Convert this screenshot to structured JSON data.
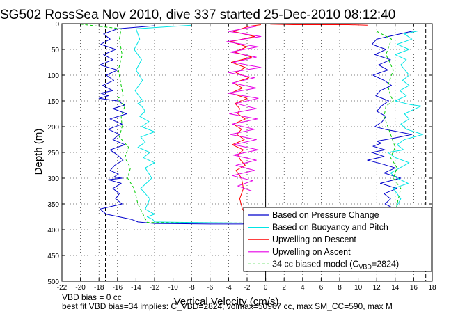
{
  "chart_data": {
    "type": "line",
    "title": "SG502 RossSea Nov 2010, dive 337 started 25-Dec-2010 08:12:40",
    "xlabel": "Vertical Velocity (cm/s)",
    "ylabel": "Depth (m)",
    "xlim": [
      -22,
      18
    ],
    "ylim": [
      0,
      500
    ],
    "y_reversed": true,
    "grid": true,
    "legend_position": "lower-right",
    "xticks": [
      "-22",
      "-20",
      "-18",
      "-16",
      "-14",
      "-12",
      "-10",
      "-8",
      "-6",
      "-4",
      "-2",
      "0",
      "2",
      "4",
      "6",
      "8",
      "10",
      "12",
      "14",
      "16",
      "18"
    ],
    "yticks": [
      "0",
      "50",
      "100",
      "150",
      "200",
      "250",
      "300",
      "350",
      "400",
      "450",
      "500"
    ],
    "vertical_lines": [
      {
        "x": -17.3,
        "style": "dashed",
        "color": "#000000"
      },
      {
        "x": 0,
        "style": "solid",
        "color": "#000000"
      },
      {
        "x": 17.3,
        "style": "dashed",
        "color": "#000000"
      }
    ],
    "series": [
      {
        "name": "Based on Pressure Change",
        "color": "#0000cc",
        "segments": [
          {
            "x": [
              -12.0,
              -16.0,
              -17.5,
              -16.8,
              -17.8,
              -16.2,
              -17.5,
              -16.5,
              -17.9,
              -16.0,
              -17.2,
              -16.4,
              -17.6,
              -16.5,
              -17.8,
              -17.0,
              -18.0,
              -16.0,
              -15.2,
              -16.5,
              -15.0,
              -16.8,
              -15.5,
              -17.0,
              -15.8,
              -16.5,
              -15.2,
              -16.8,
              -16.0,
              -15.4,
              -16.3,
              -16.8,
              -15.9,
              -16.4,
              -15.5,
              -17.0,
              -15.6,
              -16.5,
              -15.8,
              -16.2,
              -15.5,
              -17.9,
              -17.2,
              -14.5,
              -13.8,
              -12.0,
              -6.0,
              -2.5,
              -2.0
            ],
            "y": [
              4,
              10,
              20,
              30,
              40,
              50,
              60,
              70,
              80,
              90,
              100,
              110,
              120,
              130,
              135,
              140,
              145,
              150,
              158,
              165,
              175,
              185,
              195,
              205,
              215,
              225,
              235,
              245,
              255,
              265,
              275,
              285,
              292,
              298,
              300,
              303,
              310,
              320,
              330,
              340,
              350,
              360,
              370,
              380,
              385,
              388,
              389,
              389,
              388
            ]
          },
          {
            "x": [
              16.0,
              12.0,
              11.5,
              13.0,
              11.8,
              13.5,
              12.2,
              13.2,
              11.6,
              12.8,
              13.6,
              12.4,
              11.9,
              13.3,
              12.5,
              12.0,
              13.0,
              12.6,
              11.8,
              12.9,
              15.8,
              14.5,
              13.0,
              12.0,
              12.5,
              11.6,
              12.9,
              11.5,
              12.8,
              11.0,
              12.5,
              14.0,
              12.8,
              14.6,
              12.4,
              14.2,
              12.8,
              13.5,
              12.9,
              14.0,
              13.2,
              12.7
            ],
            "y": [
              14,
              30,
              40,
              50,
              60,
              70,
              80,
              90,
              100,
              110,
              120,
              130,
              140,
              150,
              160,
              170,
              180,
              190,
              200,
              205,
              215,
              220,
              225,
              228,
              232,
              238,
              245,
              250,
              258,
              265,
              272,
              280,
              290,
              300,
              310,
              320,
              330,
              340,
              350,
              360,
              370,
              380
            ]
          }
        ]
      },
      {
        "name": "Based on Buoyancy and Pitch",
        "color": "#00e5e5",
        "segments": [
          {
            "x": [
              -8.0,
              -14.0,
              -13.6,
              -14.2,
              -13.4,
              -14.0,
              -13.3,
              -14.1,
              -13.5,
              -13.2,
              -13.8,
              -13.4,
              -13.0,
              -13.6,
              -12.6,
              -13.4,
              -12.0,
              -13.5,
              -13.0,
              -13.8,
              -12.5,
              -13.2,
              -12.0,
              -13.0,
              -12.3,
              -13.5,
              -12.5,
              -13.0,
              -12.0,
              -12.8,
              -12.2,
              -12.0,
              -8.0,
              -3.0,
              -2.5
            ],
            "y": [
              3,
              10,
              30,
              50,
              70,
              90,
              110,
              130,
              145,
              150,
              155,
              160,
              170,
              180,
              190,
              200,
              210,
              220,
              230,
              240,
              250,
              260,
              270,
              280,
              300,
              320,
              340,
              360,
              370,
              375,
              380,
              385,
              386,
              387,
              387
            ]
          },
          {
            "x": [
              16.5,
              15.0,
              15.8,
              14.2,
              15.5,
              14.0,
              15.2,
              14.6,
              15.5,
              14.8,
              15.5,
              14.5,
              15.2,
              14.0,
              15.6,
              16.8,
              16.2,
              15.0,
              15.5,
              14.6,
              15.2,
              17.0,
              15.0,
              14.2,
              14.9,
              13.2,
              14.0,
              15.5,
              14.5,
              13.5,
              14.2,
              15.4,
              13.8,
              14.6,
              14.0,
              13.2
            ],
            "y": [
              14,
              20,
              30,
              40,
              50,
              60,
              70,
              80,
              100,
              110,
              120,
              130,
              140,
              150,
              157,
              160,
              165,
              175,
              185,
              195,
              205,
              215,
              225,
              235,
              245,
              250,
              260,
              270,
              280,
              290,
              300,
              310,
              320,
              340,
              360,
              380
            ]
          }
        ]
      },
      {
        "name": "Upwelling on Descent",
        "color": "#ff0000",
        "segments": [
          {
            "x": [
              -0.5,
              -1.8,
              -3.5,
              -1.2,
              -3.8,
              -2.0,
              -3.4,
              -1.5,
              -3.7,
              -2.2,
              -3.2,
              -1.8,
              -3.5,
              -2.5,
              -3.8,
              -2.0,
              -3.3,
              -2.8,
              -3.0,
              -2.2,
              -3.5,
              -2.6,
              -3.1,
              -2.3,
              -3.6,
              -2.4,
              -3.0,
              -2.7,
              -2.2,
              -3.2,
              -2.6,
              -2.4,
              -2.8,
              -2.5,
              -1.5
            ],
            "y": [
              2,
              5,
              15,
              25,
              35,
              45,
              55,
              65,
              75,
              85,
              95,
              105,
              115,
              125,
              135,
              145,
              155,
              165,
              175,
              185,
              195,
              205,
              215,
              225,
              235,
              245,
              255,
              265,
              275,
              285,
              300,
              320,
              340,
              360,
              387
            ]
          },
          {
            "x": [
              0.5,
              3.0,
              6.0,
              9.0,
              11.0
            ],
            "y": [
              1,
              2,
              2,
              2,
              3
            ]
          }
        ]
      },
      {
        "name": "Upwelling on Ascent",
        "color": "#e600e6",
        "segments": [
          {
            "x": [
              -1.0,
              -4.0,
              -0.5,
              -4.2,
              -0.8,
              -3.8,
              -1.0,
              -3.5,
              -0.5,
              -4.0,
              -1.2,
              -3.6,
              -1.0,
              -4.1,
              -0.8,
              -3.2,
              -1.0,
              -3.9,
              -0.9,
              -3.6,
              -1.2,
              -3.8,
              -1.0,
              -3.4,
              -0.8,
              -3.5,
              -1.0,
              -3.2,
              -1.2,
              -3.6,
              -1.4,
              -3.0,
              -1.5
            ],
            "y": [
              5,
              15,
              25,
              35,
              45,
              55,
              65,
              75,
              85,
              95,
              105,
              115,
              125,
              135,
              145,
              155,
              165,
              175,
              185,
              195,
              205,
              215,
              225,
              235,
              245,
              255,
              265,
              275,
              285,
              295,
              305,
              315,
              325
            ]
          }
        ]
      },
      {
        "name": "34 cc biased model (C_VBD=2824)",
        "color": "#00cc00",
        "dashed": true,
        "segments": [
          {
            "x": [
              -20.0,
              -15.6,
              -15.8,
              -15.5,
              -15.9,
              -15.6,
              -15.4,
              -16.0,
              -15.8,
              -15.2,
              -15.6,
              -15.5,
              -15.8,
              -14.8,
              -15.2,
              -14.6,
              -14.9,
              -14.2,
              -13.8,
              -12.8,
              -8.0,
              -2.5
            ],
            "y": [
              1,
              10,
              30,
              60,
              90,
              120,
              140,
              145,
              150,
              160,
              180,
              200,
              220,
              240,
              260,
              280,
              300,
              320,
              350,
              386,
              387,
              387
            ]
          },
          {
            "x": [
              12.0,
              13.6,
              13.0,
              13.8,
              13.2,
              13.5,
              13.8,
              13.0,
              12.8,
              13.2,
              13.6,
              14.0,
              13.5,
              14.2,
              13.8,
              14.6,
              14.2,
              14.0
            ],
            "y": [
              15,
              30,
              60,
              90,
              120,
              140,
              150,
              160,
              180,
              200,
              220,
              240,
              260,
              280,
              300,
              320,
              350,
              380
            ]
          }
        ]
      }
    ],
    "legend": [
      {
        "label": "Based on Pressure Change",
        "color": "#0000cc",
        "dashed": false
      },
      {
        "label": "Based on Buoyancy and Pitch",
        "color": "#00e5e5",
        "dashed": false
      },
      {
        "label": "Upwelling on Descent",
        "color": "#ff0000",
        "dashed": false
      },
      {
        "label": "Upwelling on Ascent",
        "color": "#e600e6",
        "dashed": false
      },
      {
        "label_main": "34 cc biased model (C",
        "label_sub": "VBD",
        "label_tail": "=2824)",
        "color": "#00cc00",
        "dashed": true
      }
    ]
  },
  "footer": {
    "line1": "VBD bias = 0 cc",
    "line2": "best fit VBD bias=34 implies: C_VBD=2824, volmax=50967 cc, max SM_CC=590, max M"
  }
}
